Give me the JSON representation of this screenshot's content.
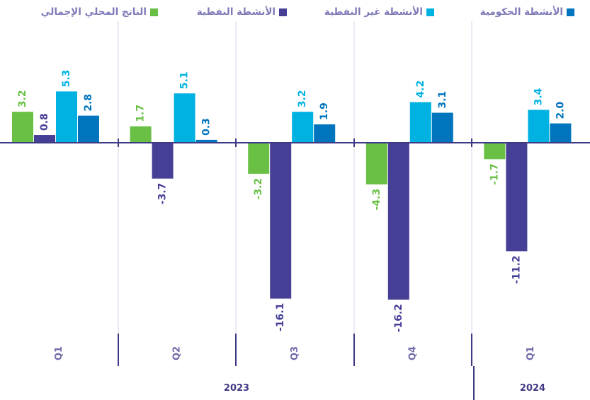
{
  "chart_data": {
    "type": "bar",
    "legend_position": "top",
    "series": [
      {
        "name": "الناتج المحلي الإجمالي",
        "color": "#6abf45",
        "values": [
          3.2,
          1.7,
          -3.2,
          -4.3,
          -1.7
        ]
      },
      {
        "name": "الأنشطة النفطية",
        "color": "#463f96",
        "values": [
          0.8,
          -3.7,
          -16.1,
          -16.2,
          -11.2
        ]
      },
      {
        "name": "الأنشطة غير النفطية",
        "color": "#00b2e2",
        "values": [
          5.3,
          5.1,
          3.2,
          4.2,
          3.4
        ]
      },
      {
        "name": "الأنشطة الحكومية",
        "color": "#0075bd",
        "values": [
          2.8,
          0.3,
          1.9,
          3.1,
          2.0
        ]
      }
    ],
    "categories": [
      "Q1",
      "Q2",
      "Q3",
      "Q4",
      "Q1"
    ],
    "category_groups": [
      {
        "label": "2023",
        "categories": [
          "Q1",
          "Q2",
          "Q3",
          "Q4"
        ]
      },
      {
        "label": "2024",
        "categories": [
          "Q1"
        ]
      }
    ],
    "value_labels": [
      [
        "3.2",
        "1.7",
        "-3.2",
        "-4.3",
        "-1.7"
      ],
      [
        "0.8",
        "-3.7",
        "-16.1",
        "-16.2",
        "-11.2"
      ],
      [
        "5.3",
        "5.1",
        "3.2",
        "4.2",
        "3.4"
      ],
      [
        "2.8",
        "0.3",
        "1.9",
        "3.1",
        "2.0"
      ]
    ],
    "axis_color": "#3e3a86",
    "gridline_color": "#d6d4e8"
  },
  "legend": [
    {
      "label": "الأنشطة الحكومية",
      "color": "#0075bd"
    },
    {
      "label": "الأنشطة غير النفطية",
      "color": "#00b2e2"
    },
    {
      "label": "الأنشطة النفطية",
      "color": "#463f96"
    },
    {
      "label": "الناتج المحلي الإجمالي",
      "color": "#6abf45"
    }
  ]
}
